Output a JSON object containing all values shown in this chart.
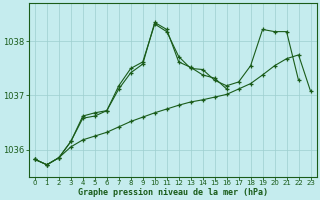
{
  "title": "Graphe pression niveau de la mer (hPa)",
  "background_color": "#c5ecee",
  "grid_color": "#9ecfcf",
  "line_color": "#1a5c1a",
  "x_ticks": [
    0,
    1,
    2,
    3,
    4,
    5,
    6,
    7,
    8,
    9,
    10,
    11,
    12,
    13,
    14,
    15,
    16,
    17,
    18,
    19,
    20,
    21,
    22,
    23
  ],
  "y_ticks": [
    1036,
    1037,
    1038
  ],
  "ylim": [
    1035.5,
    1038.7
  ],
  "xlim": [
    -0.5,
    23.5
  ],
  "series": [
    [
      1035.82,
      1035.72,
      1035.85,
      1036.15,
      1036.62,
      1036.68,
      1036.72,
      1037.18,
      1037.5,
      1037.62,
      1038.32,
      1038.18,
      1037.72,
      1037.5,
      1037.48,
      1037.28,
      1037.18,
      1037.25,
      1037.55,
      1038.22,
      1038.18,
      1038.18,
      1037.28,
      null
    ],
    [
      1035.82,
      1035.72,
      1035.85,
      1036.15,
      1036.58,
      1036.62,
      1036.72,
      1037.12,
      1037.42,
      1037.58,
      1038.35,
      1038.22,
      1037.62,
      1037.52,
      1037.38,
      1037.32,
      1037.12,
      null,
      null,
      null,
      null,
      null,
      null,
      null
    ],
    [
      1035.82,
      1035.72,
      1035.85,
      1036.05,
      1036.18,
      1036.25,
      1036.32,
      1036.42,
      1036.52,
      1036.6,
      1036.68,
      1036.75,
      1036.82,
      1036.88,
      1036.92,
      1036.97,
      1037.02,
      1037.12,
      1037.22,
      1037.38,
      1037.55,
      1037.68,
      1037.75,
      1037.08
    ]
  ]
}
